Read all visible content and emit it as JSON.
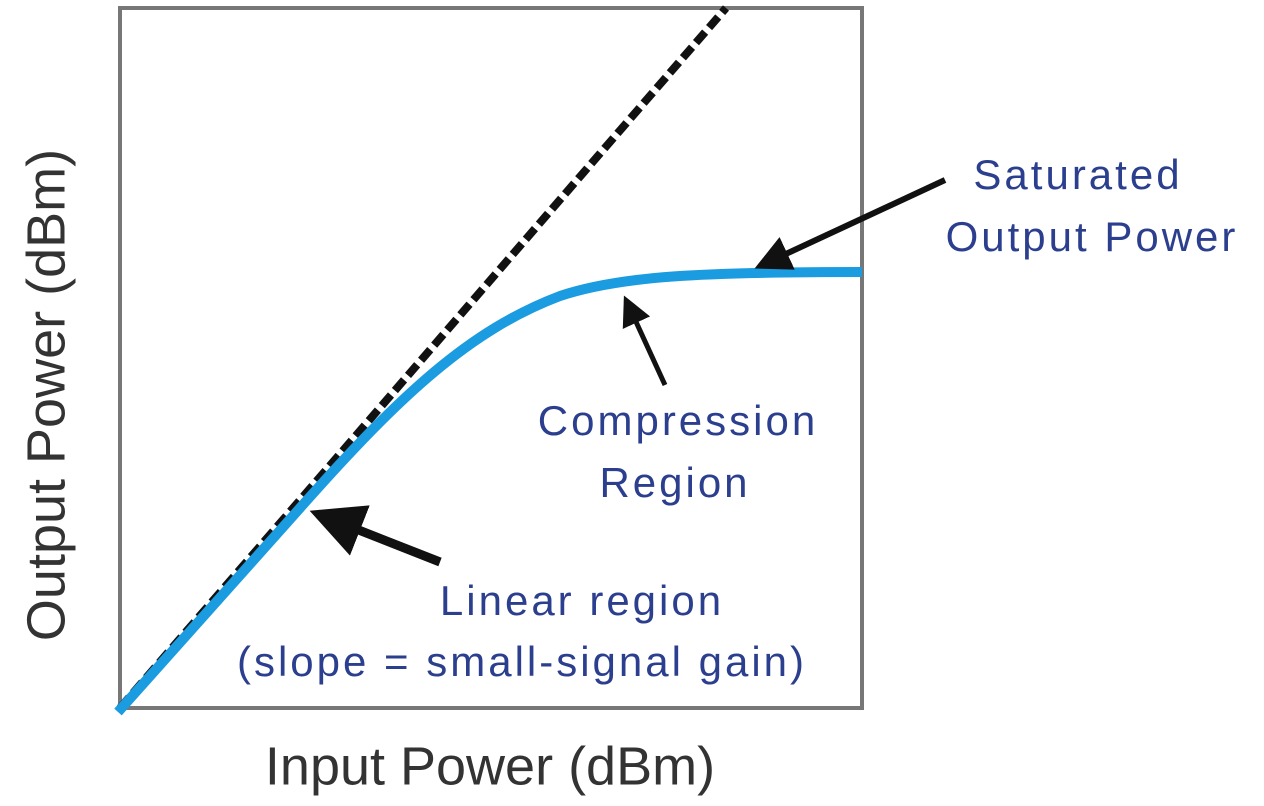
{
  "axes": {
    "x_label": "Input Power (dBm)",
    "y_label": "Output Power (dBm)"
  },
  "annotations": {
    "saturated": [
      "Saturated",
      "Output Power"
    ],
    "compression": [
      "Compression",
      "Region"
    ],
    "linear": [
      "Linear region",
      "(slope = small-signal gain)"
    ]
  }
}
